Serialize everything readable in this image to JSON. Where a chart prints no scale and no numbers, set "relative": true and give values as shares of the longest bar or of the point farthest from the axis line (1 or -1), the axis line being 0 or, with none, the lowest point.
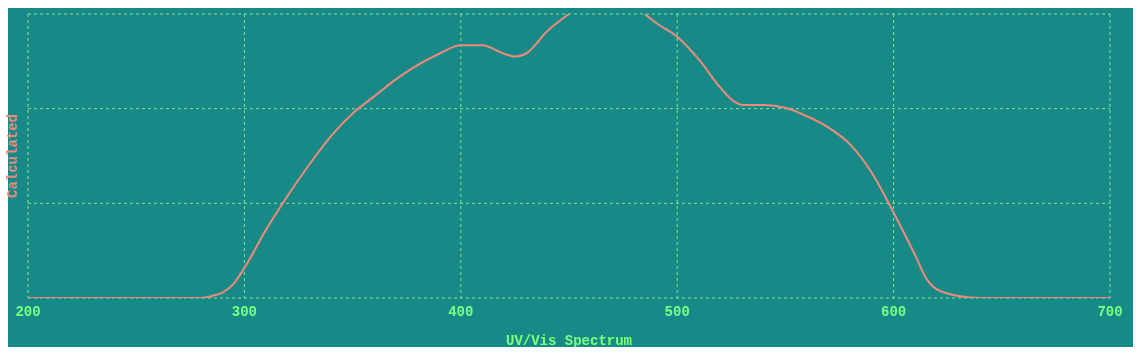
{
  "chart_data": {
    "type": "line",
    "xlabel": "UV/Vis Spectrum",
    "ylabel": "Calculated",
    "relative": true,
    "grid": true,
    "xlim": [
      200,
      700
    ],
    "xticks": [
      200,
      300,
      400,
      500,
      600,
      700
    ],
    "series": [
      {
        "color": "#f08a7a",
        "x": [
          200,
          220,
          240,
          260,
          280,
          285,
          290,
          295,
          300,
          310,
          320,
          330,
          340,
          350,
          360,
          370,
          380,
          390,
          400,
          410,
          420,
          425,
          430,
          440,
          450,
          460,
          470,
          485,
          490,
          500,
          510,
          520,
          525,
          530,
          540,
          550,
          560,
          570,
          580,
          590,
          600,
          610,
          615,
          620,
          630,
          640,
          660,
          680,
          700
        ],
        "values": [
          0,
          0,
          0,
          0,
          0,
          0.007,
          0.02,
          0.05,
          0.106,
          0.24,
          0.36,
          0.47,
          0.57,
          0.65,
          0.71,
          0.77,
          0.82,
          0.86,
          0.89,
          0.89,
          0.86,
          0.85,
          0.86,
          0.94,
          1.0,
          null,
          null,
          1.0,
          0.97,
          0.92,
          0.84,
          0.74,
          0.7,
          0.68,
          0.68,
          0.67,
          0.64,
          0.6,
          0.54,
          0.44,
          0.3,
          0.15,
          0.07,
          0.03,
          0.007,
          0,
          0,
          0,
          0
        ]
      }
    ]
  }
}
